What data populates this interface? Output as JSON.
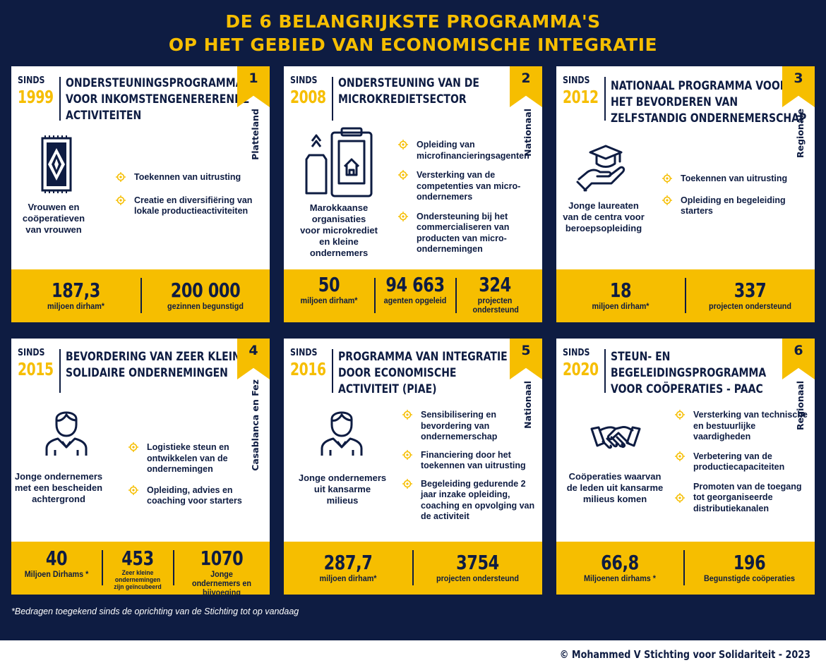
{
  "title": {
    "line1": "DE 6 BELANGRIJKSTE PROGRAMMA'S",
    "line2": "OP HET GEBIED VAN ECONOMISCHE INTEGRATIE"
  },
  "colors": {
    "navy": "#0e1c42",
    "yellow": "#f6be00",
    "white": "#ffffff"
  },
  "since_label": "SINDS",
  "cards": [
    {
      "year": "1999",
      "title_lines": [
        "ONDERSTEUNINGSPROGRAMMA",
        "VOOR INKOMSTENGENERERENDE",
        "ACTIVITEITEN"
      ],
      "number": "1",
      "region": "Platteland",
      "icon": "rug-icon",
      "target_lines": [
        "Vrouwen en",
        "coöperatieven",
        "van vrouwen"
      ],
      "bullets": [
        "Toekennen van uitrusting",
        "Creatie en diversifiëring van lokale productieactiviteiten"
      ],
      "stats": [
        {
          "num": "187,3",
          "sub": "miljoen dirham*"
        },
        {
          "num": "200 000",
          "sub": "gezinnen begunstigd"
        }
      ]
    },
    {
      "year": "2008",
      "title_lines": [
        "ONDERSTEUNING VAN DE",
        "MICROKREDIETSECTOR"
      ],
      "number": "2",
      "region": "Nationaal",
      "icon": "microcredit-icon",
      "target_lines": [
        "Marokkaanse",
        "organisaties",
        "voor microkrediet",
        "en kleine",
        "ondernemers"
      ],
      "bullets": [
        "Opleiding van microfinancieringsagenten",
        "Versterking van de competenties van micro-ondernemers",
        "Ondersteuning bij het commercialiseren van producten van micro-ondernemingen"
      ],
      "stats": [
        {
          "num": "50",
          "sub": "miljoen dirham*"
        },
        {
          "num": "94 663",
          "sub": "agenten opgeleid"
        },
        {
          "num": "324",
          "sub": "projecten ondersteund"
        }
      ]
    },
    {
      "year": "2012",
      "title_lines": [
        "NATIONAAL PROGRAMMA VOOR",
        "HET BEVORDEREN VAN",
        "ZELFSTANDIG ONDERNEMERSCHAP"
      ],
      "number": "3",
      "region": "Regionale",
      "icon": "graduate-hand-icon",
      "target_lines": [
        "Jonge laureaten",
        "van de centra voor",
        "beroepsopleiding"
      ],
      "bullets": [
        "Toekennen van uitrusting",
        "Opleiding en begeleiding starters"
      ],
      "stats": [
        {
          "num": "18",
          "sub": "miljoen dirham*"
        },
        {
          "num": "337",
          "sub": "projecten ondersteund"
        }
      ]
    },
    {
      "year": "2015",
      "title_lines": [
        "BEVORDERING VAN ZEER KLEINE",
        "SOLIDAIRE ONDERNEMINGEN"
      ],
      "number": "4",
      "region": "Casablanca en Fez",
      "icon": "person-icon",
      "target_lines": [
        "Jonge ondernemers",
        "met een bescheiden",
        "achtergrond"
      ],
      "bullets": [
        "Logistieke steun en ontwikkelen van de ondernemingen",
        "Opleiding, advies en coaching voor starters"
      ],
      "stats": [
        {
          "num": "40",
          "sub": "Miljoen Dirhams *"
        },
        {
          "num": "453",
          "sub": "Zeer kleine ondernemingen zijn geïncubeerd"
        },
        {
          "num": "1070",
          "sub": "Jonge ondernemers en bijvoeging"
        }
      ]
    },
    {
      "year": "2016",
      "title_lines": [
        "PROGRAMMA VAN INTEGRATIE",
        "DOOR ECONOMISCHE",
        "ACTIVITEIT (PIAE)"
      ],
      "number": "5",
      "region": "Nationaal",
      "icon": "person-icon",
      "target_lines": [
        "Jonge ondernemers",
        "uit kansarme",
        "milieus"
      ],
      "bullets": [
        "Sensibilisering en bevordering van ondernemerschap",
        "Financiering door het toekennen van uitrusting",
        "Begeleiding gedurende 2 jaar inzake opleiding, coaching en opvolging van de activiteit"
      ],
      "stats": [
        {
          "num": "287,7",
          "sub": "miljoen dirham*"
        },
        {
          "num": "3754",
          "sub": "projecten ondersteund"
        }
      ]
    },
    {
      "year": "2020",
      "title_lines": [
        "STEUN- EN",
        "BEGELEIDINGSPROGRAMMA",
        "VOOR COÖPERATIES - PAAC"
      ],
      "number": "6",
      "region": "Regionaal",
      "icon": "handshake-icon",
      "target_lines": [
        "Coöperaties waarvan",
        "de leden uit kansarme",
        "milieus komen"
      ],
      "bullets": [
        "Versterking van technische en bestuurlijke vaardigheden",
        "Verbetering van de productiecapaciteiten",
        "Promoten van de toegang tot georganiseerde distributiekanalen"
      ],
      "stats": [
        {
          "num": "66,8",
          "sub": "Miljoenen dirhams *"
        },
        {
          "num": "196",
          "sub": "Begunstigde coöperaties"
        }
      ]
    }
  ],
  "footnote": "*Bedragen toegekend sinds de oprichting van de Stichting tot op vandaag",
  "copyright": "© Mohammed V Stichting voor Solidariteit - 2023"
}
